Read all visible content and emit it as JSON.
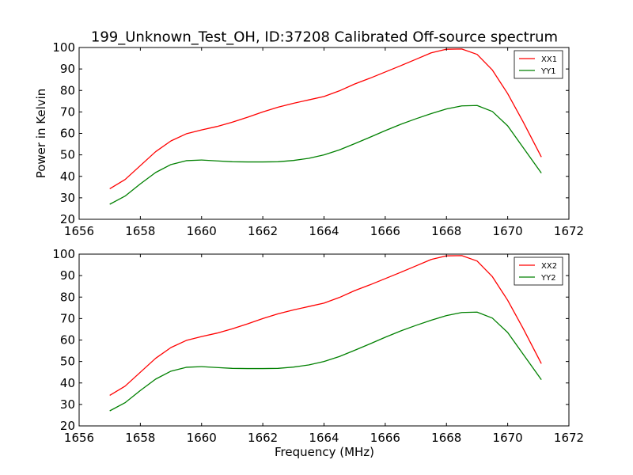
{
  "figure": {
    "title": "199_Unknown_Test_OH, ID:37208 Calibrated Off-source spectrum",
    "ylabel": "Power in Kelvin",
    "xlabel": "Frequency (MHz)"
  },
  "colors": {
    "red": "#ff0000",
    "green": "#008000"
  },
  "chart_data": [
    {
      "type": "line",
      "xlim": [
        1656,
        1672
      ],
      "ylim": [
        20,
        100
      ],
      "xticks": [
        "1656",
        "1658",
        "1660",
        "1662",
        "1664",
        "1666",
        "1668",
        "1670",
        "1672"
      ],
      "yticks": [
        "20",
        "30",
        "40",
        "50",
        "60",
        "70",
        "80",
        "90",
        "100"
      ],
      "legend_position": "upper right",
      "series": [
        {
          "name": "XX1",
          "color": "#ff0000",
          "x": [
            1657.0,
            1657.5,
            1658.0,
            1658.5,
            1659.0,
            1659.5,
            1660.0,
            1660.5,
            1661.0,
            1661.5,
            1662.0,
            1662.5,
            1663.0,
            1663.5,
            1664.0,
            1664.5,
            1665.0,
            1665.5,
            1666.0,
            1666.5,
            1667.0,
            1667.5,
            1668.0,
            1668.5,
            1669.0,
            1669.5,
            1670.0,
            1670.5,
            1671.1
          ],
          "y": [
            34.2,
            38.5,
            45.0,
            51.5,
            56.5,
            59.8,
            61.6,
            63.2,
            65.2,
            67.5,
            70.0,
            72.2,
            74.0,
            75.6,
            77.2,
            79.8,
            83.0,
            85.7,
            88.6,
            91.5,
            94.5,
            97.5,
            99.2,
            99.3,
            96.8,
            89.5,
            78.5,
            65.5,
            49.0
          ]
        },
        {
          "name": "YY1",
          "color": "#008000",
          "x": [
            1657.0,
            1657.5,
            1658.0,
            1658.5,
            1659.0,
            1659.5,
            1660.0,
            1660.5,
            1661.0,
            1661.5,
            1662.0,
            1662.5,
            1663.0,
            1663.5,
            1664.0,
            1664.5,
            1665.0,
            1665.5,
            1666.0,
            1666.5,
            1667.0,
            1667.5,
            1668.0,
            1668.5,
            1669.0,
            1669.5,
            1670.0,
            1670.5,
            1671.1
          ],
          "y": [
            27.0,
            30.8,
            36.5,
            41.8,
            45.5,
            47.3,
            47.6,
            47.2,
            46.8,
            46.7,
            46.7,
            46.8,
            47.4,
            48.4,
            50.0,
            52.3,
            55.2,
            58.2,
            61.3,
            64.2,
            66.8,
            69.2,
            71.4,
            72.8,
            73.0,
            70.2,
            63.5,
            53.5,
            41.5
          ]
        }
      ]
    },
    {
      "type": "line",
      "xlim": [
        1656,
        1672
      ],
      "ylim": [
        20,
        100
      ],
      "xticks": [
        "1656",
        "1658",
        "1660",
        "1662",
        "1664",
        "1666",
        "1668",
        "1670",
        "1672"
      ],
      "yticks": [
        "20",
        "30",
        "40",
        "50",
        "60",
        "70",
        "80",
        "90",
        "100"
      ],
      "legend_position": "upper right",
      "series": [
        {
          "name": "XX2",
          "color": "#ff0000",
          "x": [
            1657.0,
            1657.5,
            1658.0,
            1658.5,
            1659.0,
            1659.5,
            1660.0,
            1660.5,
            1661.0,
            1661.5,
            1662.0,
            1662.5,
            1663.0,
            1663.5,
            1664.0,
            1664.5,
            1665.0,
            1665.5,
            1666.0,
            1666.5,
            1667.0,
            1667.5,
            1668.0,
            1668.5,
            1669.0,
            1669.5,
            1670.0,
            1670.5,
            1671.1
          ],
          "y": [
            34.2,
            38.5,
            45.0,
            51.5,
            56.5,
            59.8,
            61.6,
            63.2,
            65.2,
            67.5,
            70.0,
            72.2,
            74.0,
            75.6,
            77.2,
            79.8,
            83.0,
            85.7,
            88.6,
            91.5,
            94.5,
            97.5,
            99.2,
            99.3,
            96.8,
            89.5,
            78.5,
            65.5,
            49.0
          ]
        },
        {
          "name": "YY2",
          "color": "#008000",
          "x": [
            1657.0,
            1657.5,
            1658.0,
            1658.5,
            1659.0,
            1659.5,
            1660.0,
            1660.5,
            1661.0,
            1661.5,
            1662.0,
            1662.5,
            1663.0,
            1663.5,
            1664.0,
            1664.5,
            1665.0,
            1665.5,
            1666.0,
            1666.5,
            1667.0,
            1667.5,
            1668.0,
            1668.5,
            1669.0,
            1669.5,
            1670.0,
            1670.5,
            1671.1
          ],
          "y": [
            27.0,
            30.8,
            36.5,
            41.8,
            45.5,
            47.3,
            47.6,
            47.2,
            46.8,
            46.7,
            46.7,
            46.8,
            47.4,
            48.4,
            50.0,
            52.3,
            55.2,
            58.2,
            61.3,
            64.2,
            66.8,
            69.2,
            71.4,
            72.8,
            73.0,
            70.2,
            63.5,
            53.5,
            41.5
          ]
        }
      ]
    }
  ]
}
